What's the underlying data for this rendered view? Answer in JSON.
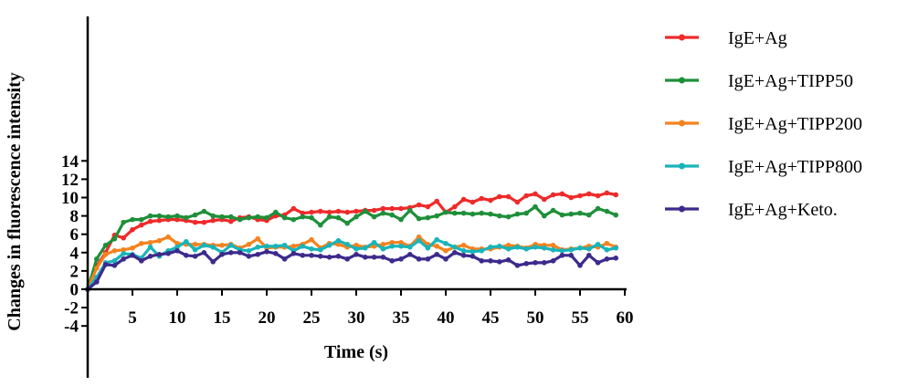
{
  "chart_data": {
    "type": "line",
    "title": "",
    "xlabel": "Time (s)",
    "ylabel": "Changes in fluorescence intensity",
    "xlim": [
      0,
      60
    ],
    "ylim": [
      -5,
      15
    ],
    "x_ticks": [
      5,
      10,
      15,
      20,
      25,
      30,
      35,
      40,
      45,
      50,
      55,
      60
    ],
    "x_tick_labels": [
      "5",
      "10",
      "15",
      "20",
      "25",
      "30",
      "35",
      "40",
      "45",
      "50",
      "55",
      "60"
    ],
    "y_ticks": [
      -4,
      -2,
      0,
      2,
      4,
      6,
      8,
      10,
      12,
      14
    ],
    "y_tick_labels": [
      "-4",
      "-2",
      "0",
      "2",
      "4",
      "6",
      "8",
      "10",
      "12",
      "14"
    ],
    "grid": false,
    "legend_position": "right",
    "x": [
      0,
      1,
      2,
      3,
      4,
      5,
      6,
      7,
      8,
      9,
      10,
      11,
      12,
      13,
      14,
      15,
      16,
      17,
      18,
      19,
      20,
      21,
      22,
      23,
      24,
      25,
      26,
      27,
      28,
      29,
      30,
      31,
      32,
      33,
      34,
      35,
      36,
      37,
      38,
      39,
      40,
      41,
      42,
      43,
      44,
      45,
      46,
      47,
      48,
      49,
      50,
      51,
      52,
      53,
      54,
      55,
      56,
      57,
      58,
      59
    ],
    "series": [
      {
        "name": "IgE+Ag",
        "color": "#ee2a2a",
        "values": [
          0,
          2.5,
          4.0,
          5.9,
          5.6,
          6.5,
          7.0,
          7.4,
          7.5,
          7.6,
          7.6,
          7.5,
          7.3,
          7.3,
          7.5,
          7.6,
          7.4,
          7.8,
          7.9,
          7.6,
          7.5,
          8.0,
          8.1,
          8.8,
          8.3,
          8.4,
          8.5,
          8.4,
          8.5,
          8.4,
          8.5,
          8.6,
          8.6,
          8.8,
          8.8,
          8.8,
          8.9,
          9.2,
          9.0,
          9.6,
          8.4,
          9.0,
          9.8,
          9.5,
          9.9,
          9.7,
          10.1,
          10.1,
          9.5,
          10.2,
          10.4,
          9.8,
          10.3,
          10.4,
          10.0,
          10.2,
          10.4,
          10.2,
          10.5,
          10.3
        ]
      },
      {
        "name": "IgE+Ag+TIPP50",
        "color": "#1f8f3a",
        "values": [
          0,
          3.3,
          4.8,
          5.5,
          7.3,
          7.6,
          7.6,
          8.0,
          8.0,
          7.9,
          8.0,
          7.8,
          8.1,
          8.5,
          8.0,
          7.9,
          7.9,
          7.6,
          7.8,
          7.9,
          7.8,
          8.4,
          7.8,
          7.6,
          7.9,
          7.8,
          7.0,
          7.9,
          7.8,
          7.2,
          7.9,
          8.5,
          7.9,
          8.3,
          8.1,
          7.6,
          8.6,
          7.7,
          7.8,
          8.0,
          8.4,
          8.3,
          8.3,
          8.2,
          8.3,
          8.2,
          8.0,
          7.9,
          8.2,
          8.3,
          9.0,
          8.0,
          8.6,
          8.1,
          8.2,
          8.3,
          8.1,
          8.8,
          8.5,
          8.1
        ]
      },
      {
        "name": "IgE+Ag+TIPP200",
        "color": "#f5821f",
        "values": [
          0,
          2.3,
          3.8,
          4.2,
          4.3,
          4.5,
          5.0,
          5.1,
          5.3,
          5.7,
          5.0,
          4.9,
          4.9,
          4.9,
          4.8,
          4.8,
          4.9,
          4.5,
          4.9,
          5.5,
          4.5,
          4.6,
          4.6,
          4.7,
          4.9,
          5.4,
          4.5,
          5.0,
          4.9,
          4.6,
          4.8,
          4.6,
          4.7,
          4.9,
          5.1,
          5.1,
          4.7,
          5.7,
          4.9,
          4.7,
          4.2,
          4.6,
          4.8,
          4.4,
          4.4,
          4.4,
          4.6,
          4.8,
          4.7,
          4.5,
          4.9,
          4.8,
          4.8,
          4.3,
          4.4,
          4.5,
          4.7,
          4.6,
          5.0,
          4.6
        ]
      },
      {
        "name": "IgE+Ag+TIPP800",
        "color": "#19b4b8",
        "values": [
          0,
          1.3,
          2.9,
          3.1,
          3.9,
          3.8,
          3.4,
          4.6,
          3.6,
          4.2,
          4.6,
          5.2,
          4.3,
          4.8,
          4.6,
          4.0,
          4.8,
          4.3,
          4.2,
          4.6,
          4.7,
          4.7,
          4.8,
          4.2,
          4.7,
          4.4,
          4.3,
          4.8,
          5.3,
          4.9,
          4.4,
          4.5,
          5.1,
          4.4,
          4.7,
          4.7,
          4.6,
          5.3,
          4.5,
          5.4,
          5.0,
          4.6,
          4.2,
          4.1,
          4.2,
          4.6,
          4.7,
          4.4,
          4.6,
          4.4,
          4.6,
          4.5,
          4.3,
          4.2,
          4.3,
          4.5,
          4.4,
          4.9,
          4.3,
          4.5
        ]
      },
      {
        "name": "IgE+Ag+Keto.",
        "color": "#3d2a8c",
        "values": [
          0,
          0.8,
          2.7,
          2.6,
          3.3,
          3.7,
          3.1,
          3.6,
          3.8,
          3.9,
          4.2,
          3.7,
          3.6,
          4.0,
          3.0,
          3.8,
          4.0,
          4.0,
          3.6,
          3.8,
          4.1,
          3.9,
          3.3,
          3.9,
          3.7,
          3.7,
          3.6,
          3.5,
          3.6,
          3.3,
          3.8,
          3.5,
          3.5,
          3.5,
          3.1,
          3.3,
          3.8,
          3.3,
          3.3,
          3.8,
          3.3,
          4.0,
          3.7,
          3.6,
          3.1,
          3.1,
          3.0,
          3.2,
          2.6,
          2.8,
          2.9,
          2.9,
          3.1,
          3.7,
          3.7,
          2.6,
          3.7,
          2.9,
          3.3,
          3.4
        ]
      }
    ]
  }
}
